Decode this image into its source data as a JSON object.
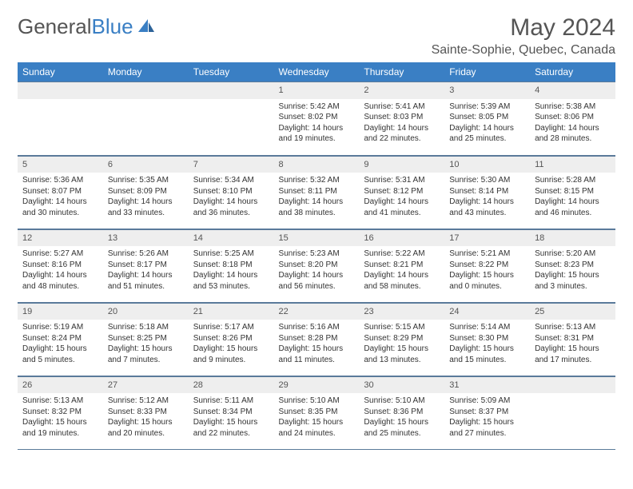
{
  "logo": {
    "text1": "General",
    "text2": "Blue"
  },
  "title": "May 2024",
  "location": "Sainte-Sophie, Quebec, Canada",
  "colors": {
    "header_bg": "#3a7fc4",
    "header_text": "#ffffff",
    "daynum_bg": "#eeeeee",
    "row_border": "#5a7a9a",
    "title_color": "#555555",
    "body_text": "#333333",
    "page_bg": "#ffffff"
  },
  "fonts": {
    "title_size": 30,
    "location_size": 16,
    "weekday_size": 12,
    "daynum_size": 11,
    "cell_size": 10
  },
  "weekdays": [
    "Sunday",
    "Monday",
    "Tuesday",
    "Wednesday",
    "Thursday",
    "Friday",
    "Saturday"
  ],
  "weeks": [
    [
      null,
      null,
      null,
      {
        "n": "1",
        "sunrise": "5:42 AM",
        "sunset": "8:02 PM",
        "daylight": "14 hours and 19 minutes."
      },
      {
        "n": "2",
        "sunrise": "5:41 AM",
        "sunset": "8:03 PM",
        "daylight": "14 hours and 22 minutes."
      },
      {
        "n": "3",
        "sunrise": "5:39 AM",
        "sunset": "8:05 PM",
        "daylight": "14 hours and 25 minutes."
      },
      {
        "n": "4",
        "sunrise": "5:38 AM",
        "sunset": "8:06 PM",
        "daylight": "14 hours and 28 minutes."
      }
    ],
    [
      {
        "n": "5",
        "sunrise": "5:36 AM",
        "sunset": "8:07 PM",
        "daylight": "14 hours and 30 minutes."
      },
      {
        "n": "6",
        "sunrise": "5:35 AM",
        "sunset": "8:09 PM",
        "daylight": "14 hours and 33 minutes."
      },
      {
        "n": "7",
        "sunrise": "5:34 AM",
        "sunset": "8:10 PM",
        "daylight": "14 hours and 36 minutes."
      },
      {
        "n": "8",
        "sunrise": "5:32 AM",
        "sunset": "8:11 PM",
        "daylight": "14 hours and 38 minutes."
      },
      {
        "n": "9",
        "sunrise": "5:31 AM",
        "sunset": "8:12 PM",
        "daylight": "14 hours and 41 minutes."
      },
      {
        "n": "10",
        "sunrise": "5:30 AM",
        "sunset": "8:14 PM",
        "daylight": "14 hours and 43 minutes."
      },
      {
        "n": "11",
        "sunrise": "5:28 AM",
        "sunset": "8:15 PM",
        "daylight": "14 hours and 46 minutes."
      }
    ],
    [
      {
        "n": "12",
        "sunrise": "5:27 AM",
        "sunset": "8:16 PM",
        "daylight": "14 hours and 48 minutes."
      },
      {
        "n": "13",
        "sunrise": "5:26 AM",
        "sunset": "8:17 PM",
        "daylight": "14 hours and 51 minutes."
      },
      {
        "n": "14",
        "sunrise": "5:25 AM",
        "sunset": "8:18 PM",
        "daylight": "14 hours and 53 minutes."
      },
      {
        "n": "15",
        "sunrise": "5:23 AM",
        "sunset": "8:20 PM",
        "daylight": "14 hours and 56 minutes."
      },
      {
        "n": "16",
        "sunrise": "5:22 AM",
        "sunset": "8:21 PM",
        "daylight": "14 hours and 58 minutes."
      },
      {
        "n": "17",
        "sunrise": "5:21 AM",
        "sunset": "8:22 PM",
        "daylight": "15 hours and 0 minutes."
      },
      {
        "n": "18",
        "sunrise": "5:20 AM",
        "sunset": "8:23 PM",
        "daylight": "15 hours and 3 minutes."
      }
    ],
    [
      {
        "n": "19",
        "sunrise": "5:19 AM",
        "sunset": "8:24 PM",
        "daylight": "15 hours and 5 minutes."
      },
      {
        "n": "20",
        "sunrise": "5:18 AM",
        "sunset": "8:25 PM",
        "daylight": "15 hours and 7 minutes."
      },
      {
        "n": "21",
        "sunrise": "5:17 AM",
        "sunset": "8:26 PM",
        "daylight": "15 hours and 9 minutes."
      },
      {
        "n": "22",
        "sunrise": "5:16 AM",
        "sunset": "8:28 PM",
        "daylight": "15 hours and 11 minutes."
      },
      {
        "n": "23",
        "sunrise": "5:15 AM",
        "sunset": "8:29 PM",
        "daylight": "15 hours and 13 minutes."
      },
      {
        "n": "24",
        "sunrise": "5:14 AM",
        "sunset": "8:30 PM",
        "daylight": "15 hours and 15 minutes."
      },
      {
        "n": "25",
        "sunrise": "5:13 AM",
        "sunset": "8:31 PM",
        "daylight": "15 hours and 17 minutes."
      }
    ],
    [
      {
        "n": "26",
        "sunrise": "5:13 AM",
        "sunset": "8:32 PM",
        "daylight": "15 hours and 19 minutes."
      },
      {
        "n": "27",
        "sunrise": "5:12 AM",
        "sunset": "8:33 PM",
        "daylight": "15 hours and 20 minutes."
      },
      {
        "n": "28",
        "sunrise": "5:11 AM",
        "sunset": "8:34 PM",
        "daylight": "15 hours and 22 minutes."
      },
      {
        "n": "29",
        "sunrise": "5:10 AM",
        "sunset": "8:35 PM",
        "daylight": "15 hours and 24 minutes."
      },
      {
        "n": "30",
        "sunrise": "5:10 AM",
        "sunset": "8:36 PM",
        "daylight": "15 hours and 25 minutes."
      },
      {
        "n": "31",
        "sunrise": "5:09 AM",
        "sunset": "8:37 PM",
        "daylight": "15 hours and 27 minutes."
      },
      null
    ]
  ],
  "labels": {
    "sunrise": "Sunrise:",
    "sunset": "Sunset:",
    "daylight": "Daylight:"
  }
}
